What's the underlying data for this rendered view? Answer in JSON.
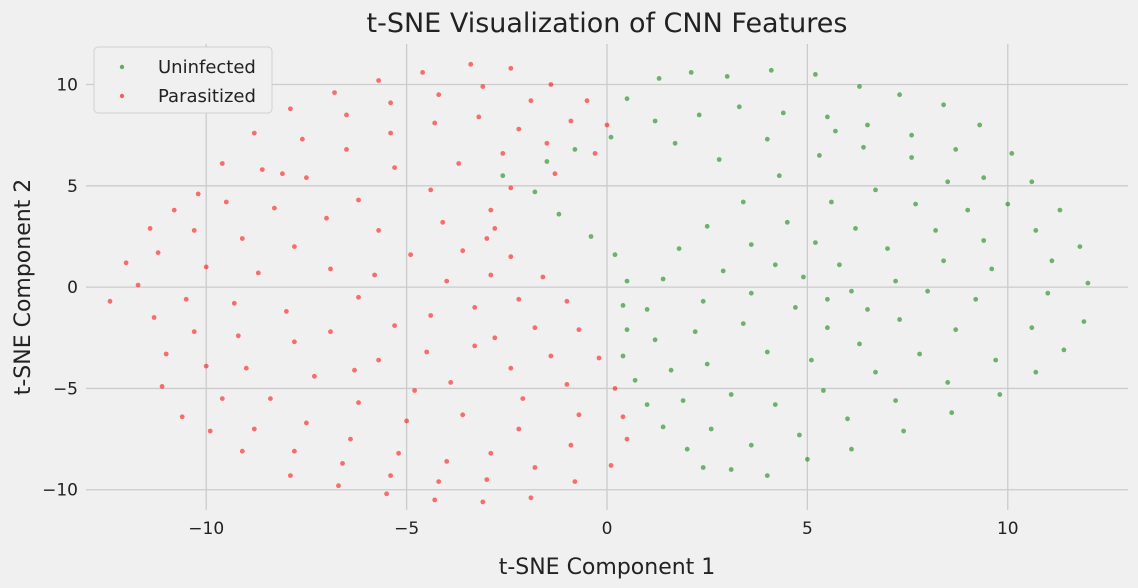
{
  "chart_data": {
    "type": "scatter",
    "title": "t-SNE Visualization of CNN Features",
    "xlabel": "t-SNE Component 1",
    "ylabel": "t-SNE Component 2",
    "xlim": [
      -13.0,
      13.0
    ],
    "ylim": [
      -11.0,
      12.0
    ],
    "xticks": [
      -10,
      -5,
      0,
      5,
      10
    ],
    "yticks": [
      -10,
      -5,
      0,
      5,
      10
    ],
    "xtick_labels": [
      "−10",
      "−5",
      "0",
      "5",
      "10"
    ],
    "ytick_labels": [
      "−10",
      "−5",
      "0",
      "5",
      "10"
    ],
    "grid": true,
    "legend_position": "top-left",
    "series": [
      {
        "name": "Uninfected",
        "color": "#008000",
        "alpha": 0.55,
        "points": [
          [
            0.5,
            9.3
          ],
          [
            1.3,
            10.3
          ],
          [
            2.1,
            10.6
          ],
          [
            3.0,
            10.4
          ],
          [
            4.1,
            10.7
          ],
          [
            5.2,
            10.5
          ],
          [
            6.3,
            9.9
          ],
          [
            7.3,
            9.5
          ],
          [
            8.4,
            9.0
          ],
          [
            9.3,
            8.0
          ],
          [
            10.1,
            6.6
          ],
          [
            10.6,
            5.2
          ],
          [
            11.3,
            3.8
          ],
          [
            11.8,
            2.0
          ],
          [
            12.0,
            0.2
          ],
          [
            11.9,
            -1.7
          ],
          [
            11.4,
            -3.1
          ],
          [
            10.7,
            -4.2
          ],
          [
            9.8,
            -5.3
          ],
          [
            8.6,
            -6.2
          ],
          [
            7.4,
            -7.1
          ],
          [
            6.1,
            -8.0
          ],
          [
            5.0,
            -8.5
          ],
          [
            4.0,
            -9.3
          ],
          [
            3.1,
            -9.0
          ],
          [
            2.4,
            -8.9
          ],
          [
            2.0,
            -8.0
          ],
          [
            1.4,
            -6.9
          ],
          [
            1.0,
            -5.8
          ],
          [
            0.7,
            -4.6
          ],
          [
            0.4,
            -3.4
          ],
          [
            0.5,
            -2.1
          ],
          [
            0.4,
            -0.9
          ],
          [
            0.5,
            0.3
          ],
          [
            0.2,
            1.6
          ],
          [
            -0.4,
            2.5
          ],
          [
            -1.2,
            3.6
          ],
          [
            -1.8,
            4.7
          ],
          [
            -2.6,
            5.5
          ],
          [
            -1.5,
            6.2
          ],
          [
            -0.8,
            6.8
          ],
          [
            0.1,
            7.4
          ],
          [
            1.2,
            8.2
          ],
          [
            2.3,
            8.5
          ],
          [
            3.3,
            8.9
          ],
          [
            4.4,
            8.6
          ],
          [
            5.5,
            8.4
          ],
          [
            6.5,
            8.0
          ],
          [
            7.6,
            7.5
          ],
          [
            8.7,
            6.8
          ],
          [
            9.4,
            5.4
          ],
          [
            10.0,
            4.1
          ],
          [
            10.7,
            2.8
          ],
          [
            11.1,
            1.3
          ],
          [
            11.0,
            -0.3
          ],
          [
            10.6,
            -2.0
          ],
          [
            9.7,
            -3.6
          ],
          [
            8.5,
            -4.7
          ],
          [
            7.2,
            -5.6
          ],
          [
            6.0,
            -6.5
          ],
          [
            4.8,
            -7.3
          ],
          [
            3.6,
            -7.8
          ],
          [
            2.6,
            -7.0
          ],
          [
            1.9,
            -5.6
          ],
          [
            1.6,
            -4.1
          ],
          [
            1.2,
            -2.6
          ],
          [
            1.0,
            -1.1
          ],
          [
            1.4,
            0.4
          ],
          [
            1.8,
            1.9
          ],
          [
            2.5,
            3.0
          ],
          [
            3.4,
            4.2
          ],
          [
            4.3,
            5.5
          ],
          [
            5.3,
            6.5
          ],
          [
            6.4,
            6.9
          ],
          [
            7.6,
            6.4
          ],
          [
            8.5,
            5.2
          ],
          [
            9.0,
            3.8
          ],
          [
            9.4,
            2.3
          ],
          [
            9.6,
            0.9
          ],
          [
            9.2,
            -0.6
          ],
          [
            8.7,
            -2.1
          ],
          [
            7.8,
            -3.3
          ],
          [
            6.7,
            -4.2
          ],
          [
            5.4,
            -5.1
          ],
          [
            4.2,
            -5.8
          ],
          [
            3.1,
            -5.3
          ],
          [
            2.5,
            -3.8
          ],
          [
            2.2,
            -2.2
          ],
          [
            2.4,
            -0.7
          ],
          [
            2.9,
            0.8
          ],
          [
            3.6,
            2.1
          ],
          [
            4.5,
            3.2
          ],
          [
            5.6,
            4.2
          ],
          [
            6.7,
            4.8
          ],
          [
            7.7,
            4.1
          ],
          [
            8.2,
            2.8
          ],
          [
            8.4,
            1.3
          ],
          [
            8.0,
            -0.2
          ],
          [
            7.3,
            -1.6
          ],
          [
            6.3,
            -2.8
          ],
          [
            5.1,
            -3.6
          ],
          [
            4.0,
            -3.2
          ],
          [
            3.4,
            -1.8
          ],
          [
            3.6,
            -0.3
          ],
          [
            4.2,
            1.1
          ],
          [
            5.2,
            2.2
          ],
          [
            6.2,
            2.9
          ],
          [
            7.0,
            1.9
          ],
          [
            7.2,
            0.3
          ],
          [
            6.5,
            -1.1
          ],
          [
            5.5,
            -2.0
          ],
          [
            4.7,
            -1.0
          ],
          [
            4.9,
            0.5
          ],
          [
            5.8,
            1.1
          ],
          [
            6.1,
            -0.2
          ],
          [
            5.5,
            -0.6
          ],
          [
            1.7,
            7.1
          ],
          [
            2.8,
            6.3
          ],
          [
            4.0,
            7.3
          ],
          [
            5.7,
            7.7
          ]
        ]
      },
      {
        "name": "Parasitized",
        "color": "#ff0000",
        "alpha": 0.55,
        "points": [
          [
            -12.4,
            -0.7
          ],
          [
            -12.0,
            1.2
          ],
          [
            -11.4,
            2.9
          ],
          [
            -10.8,
            3.8
          ],
          [
            -10.2,
            4.6
          ],
          [
            -9.6,
            6.1
          ],
          [
            -8.8,
            7.6
          ],
          [
            -7.9,
            8.8
          ],
          [
            -6.8,
            9.6
          ],
          [
            -5.7,
            10.2
          ],
          [
            -4.6,
            10.6
          ],
          [
            -3.4,
            11.0
          ],
          [
            -2.4,
            10.8
          ],
          [
            -1.4,
            10.0
          ],
          [
            -0.5,
            9.2
          ],
          [
            0.0,
            8.0
          ],
          [
            -0.3,
            6.6
          ],
          [
            -1.3,
            5.6
          ],
          [
            -2.4,
            4.9
          ],
          [
            -2.9,
            3.8
          ],
          [
            -3.0,
            2.4
          ],
          [
            -2.4,
            1.5
          ],
          [
            -1.6,
            0.5
          ],
          [
            -1.0,
            -0.7
          ],
          [
            -0.7,
            -2.1
          ],
          [
            -0.2,
            -3.5
          ],
          [
            0.2,
            -5.0
          ],
          [
            0.4,
            -6.4
          ],
          [
            0.5,
            -7.5
          ],
          [
            0.1,
            -8.8
          ],
          [
            -0.8,
            -9.6
          ],
          [
            -1.9,
            -10.4
          ],
          [
            -3.1,
            -10.6
          ],
          [
            -4.3,
            -10.5
          ],
          [
            -5.5,
            -10.2
          ],
          [
            -6.7,
            -9.8
          ],
          [
            -7.9,
            -9.3
          ],
          [
            -9.1,
            -8.1
          ],
          [
            -9.9,
            -7.1
          ],
          [
            -10.6,
            -6.4
          ],
          [
            -11.1,
            -4.9
          ],
          [
            -11.0,
            -3.3
          ],
          [
            -11.3,
            -1.5
          ],
          [
            -11.7,
            0.1
          ],
          [
            -11.2,
            1.7
          ],
          [
            -10.3,
            2.8
          ],
          [
            -9.5,
            4.2
          ],
          [
            -8.6,
            5.8
          ],
          [
            -7.6,
            7.3
          ],
          [
            -6.5,
            8.5
          ],
          [
            -5.4,
            9.1
          ],
          [
            -4.2,
            9.5
          ],
          [
            -3.1,
            9.9
          ],
          [
            -1.9,
            9.2
          ],
          [
            -0.9,
            8.2
          ],
          [
            -1.5,
            7.1
          ],
          [
            -2.6,
            6.6
          ],
          [
            -3.7,
            6.1
          ],
          [
            -4.4,
            4.8
          ],
          [
            -4.1,
            3.2
          ],
          [
            -3.6,
            1.8
          ],
          [
            -2.9,
            0.6
          ],
          [
            -2.2,
            -0.6
          ],
          [
            -1.8,
            -2.0
          ],
          [
            -1.4,
            -3.4
          ],
          [
            -1.0,
            -4.8
          ],
          [
            -0.7,
            -6.3
          ],
          [
            -0.9,
            -7.8
          ],
          [
            -1.8,
            -8.9
          ],
          [
            -3.0,
            -9.5
          ],
          [
            -4.2,
            -9.6
          ],
          [
            -5.4,
            -9.3
          ],
          [
            -6.6,
            -8.7
          ],
          [
            -7.8,
            -8.1
          ],
          [
            -8.8,
            -7.0
          ],
          [
            -9.6,
            -5.5
          ],
          [
            -10.0,
            -3.9
          ],
          [
            -10.3,
            -2.2
          ],
          [
            -10.5,
            -0.6
          ],
          [
            -10.0,
            1.0
          ],
          [
            -9.1,
            2.4
          ],
          [
            -8.3,
            3.9
          ],
          [
            -7.5,
            5.4
          ],
          [
            -6.5,
            6.8
          ],
          [
            -5.4,
            7.6
          ],
          [
            -4.3,
            8.1
          ],
          [
            -3.2,
            8.4
          ],
          [
            -2.2,
            7.8
          ],
          [
            -5.3,
            5.9
          ],
          [
            -6.2,
            4.3
          ],
          [
            -5.7,
            2.8
          ],
          [
            -4.9,
            1.6
          ],
          [
            -4.0,
            0.3
          ],
          [
            -3.3,
            -1.0
          ],
          [
            -2.8,
            -2.5
          ],
          [
            -2.4,
            -4.0
          ],
          [
            -2.1,
            -5.5
          ],
          [
            -2.2,
            -7.0
          ],
          [
            -2.9,
            -8.2
          ],
          [
            -4.0,
            -8.6
          ],
          [
            -5.2,
            -8.2
          ],
          [
            -6.4,
            -7.5
          ],
          [
            -7.5,
            -6.7
          ],
          [
            -8.4,
            -5.5
          ],
          [
            -9.0,
            -4.0
          ],
          [
            -9.2,
            -2.4
          ],
          [
            -9.3,
            -0.8
          ],
          [
            -8.7,
            0.7
          ],
          [
            -7.8,
            2.0
          ],
          [
            -7.0,
            3.4
          ],
          [
            -6.9,
            0.9
          ],
          [
            -6.2,
            -0.5
          ],
          [
            -5.3,
            -1.9
          ],
          [
            -4.5,
            -3.2
          ],
          [
            -3.9,
            -4.7
          ],
          [
            -3.6,
            -6.3
          ],
          [
            -5.0,
            -6.6
          ],
          [
            -6.2,
            -5.7
          ],
          [
            -7.3,
            -4.4
          ],
          [
            -7.8,
            -2.7
          ],
          [
            -8.0,
            -1.2
          ],
          [
            -6.9,
            -2.2
          ],
          [
            -5.7,
            -3.6
          ],
          [
            -4.8,
            -5.1
          ],
          [
            -6.3,
            -4.1
          ],
          [
            -5.8,
            0.6
          ],
          [
            -4.4,
            -1.4
          ],
          [
            -3.3,
            -2.9
          ],
          [
            -8.1,
            5.6
          ],
          [
            -2.8,
            2.9
          ]
        ]
      }
    ]
  }
}
